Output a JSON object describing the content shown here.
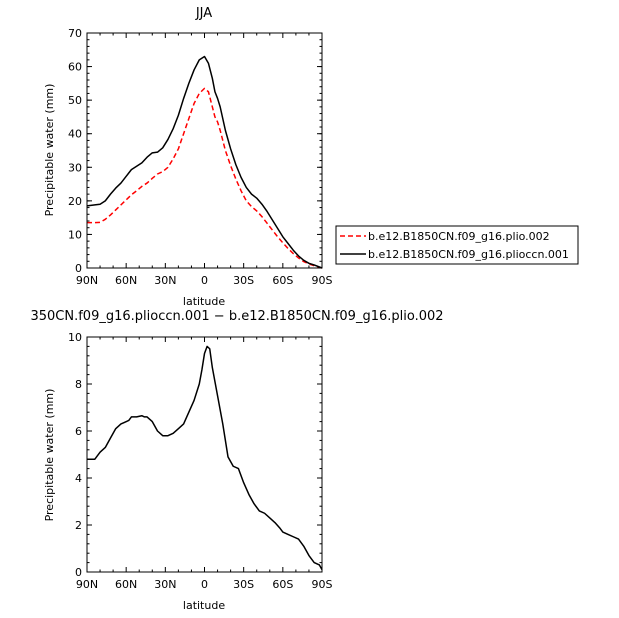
{
  "chart_data": [
    {
      "type": "line",
      "title": "JJA",
      "xlabel": "latitude",
      "ylabel": "Precipitable water (mm)",
      "xlim": [
        90,
        -90
      ],
      "ylim": [
        0,
        70
      ],
      "xtick_values": [
        90,
        60,
        30,
        0,
        -30,
        -60,
        -90
      ],
      "xtick_labels": [
        "90N",
        "60N",
        "30N",
        "0",
        "30S",
        "60S",
        "90S"
      ],
      "ytick_values": [
        0,
        10,
        20,
        30,
        40,
        50,
        60,
        70
      ],
      "ytick_labels": [
        "0",
        "10",
        "20",
        "30",
        "40",
        "50",
        "60",
        "70"
      ],
      "legend": "right",
      "series": [
        {
          "name": "b.e12.B1850CN.f09_g16.plio.002",
          "color": "#ff0000",
          "dashed": true,
          "x": [
            90,
            84,
            80,
            76,
            72,
            68,
            64,
            60,
            56,
            52,
            48,
            44,
            40,
            36,
            32,
            28,
            24,
            20,
            16,
            12,
            8,
            4,
            0,
            -3,
            -6,
            -8,
            -10,
            -12,
            -16,
            -20,
            -24,
            -28,
            -32,
            -36,
            -40,
            -44,
            -48,
            -52,
            -56,
            -60,
            -64,
            -68,
            -72,
            -76,
            -80,
            -84,
            -88,
            -90
          ],
          "y": [
            13.5,
            13.5,
            13.6,
            14.5,
            15.8,
            17.3,
            18.8,
            20.3,
            21.8,
            23.0,
            24.3,
            25.3,
            26.7,
            28.0,
            28.7,
            30.0,
            32.5,
            35.5,
            40.0,
            44.5,
            49.0,
            52.0,
            53.5,
            52.5,
            48.0,
            45.0,
            43.5,
            41.0,
            35.0,
            30.5,
            26.5,
            23.0,
            20.0,
            18.3,
            17.0,
            15.3,
            13.3,
            11.3,
            9.3,
            7.5,
            5.8,
            4.3,
            3.0,
            1.9,
            1.2,
            0.7,
            0.2,
            0.0
          ]
        },
        {
          "name": "b.e12.B1850CN.f09_g16.plioccn.001",
          "color": "#000000",
          "dashed": false,
          "x": [
            90,
            84,
            80,
            76,
            72,
            68,
            64,
            60,
            56,
            52,
            48,
            44,
            40,
            36,
            32,
            28,
            24,
            20,
            16,
            12,
            8,
            4,
            0,
            -3,
            -6,
            -8,
            -10,
            -12,
            -16,
            -20,
            -24,
            -28,
            -32,
            -36,
            -40,
            -44,
            -48,
            -52,
            -56,
            -60,
            -64,
            -68,
            -72,
            -76,
            -80,
            -84,
            -88,
            -90
          ],
          "y": [
            18.5,
            18.8,
            19.0,
            20.0,
            22.0,
            23.8,
            25.3,
            27.3,
            29.3,
            30.3,
            31.3,
            33.0,
            34.3,
            34.5,
            35.8,
            38.3,
            41.5,
            45.5,
            50.5,
            55.0,
            59.0,
            62.0,
            63.0,
            61.0,
            56.5,
            52.5,
            50.5,
            48.0,
            41.0,
            35.5,
            30.8,
            27.0,
            24.0,
            22.0,
            20.8,
            19.0,
            16.8,
            14.3,
            11.8,
            9.3,
            7.3,
            5.3,
            3.6,
            2.3,
            1.4,
            0.9,
            0.3,
            0.0
          ]
        }
      ]
    },
    {
      "type": "line",
      "title": "350CN.f09_g16.plioccn.001 − b.e12.B1850CN.f09_g16.plio.002",
      "xlabel": "latitude",
      "ylabel": "Precipitable water (mm)",
      "xlim": [
        90,
        -90
      ],
      "ylim": [
        0,
        10
      ],
      "xtick_values": [
        90,
        60,
        30,
        0,
        -30,
        -60,
        -90
      ],
      "xtick_labels": [
        "90N",
        "60N",
        "30N",
        "0",
        "30S",
        "60S",
        "90S"
      ],
      "ytick_values": [
        0,
        2,
        4,
        6,
        8,
        10
      ],
      "ytick_labels": [
        "0",
        "2",
        "4",
        "6",
        "8",
        "10"
      ],
      "series": [
        {
          "color": "#000000",
          "dashed": false,
          "x": [
            90,
            86,
            84,
            80,
            76,
            72,
            68,
            64,
            62,
            58,
            56,
            52,
            48,
            46,
            44,
            40,
            36,
            32,
            28,
            24,
            20,
            16,
            12,
            8,
            4,
            2,
            0,
            -2,
            -4,
            -6,
            -8,
            -10,
            -14,
            -18,
            -22,
            -26,
            -30,
            -34,
            -38,
            -42,
            -46,
            -50,
            -54,
            -58,
            -60,
            -64,
            -68,
            -72,
            -76,
            -80,
            -84,
            -88,
            -90
          ],
          "y": [
            4.8,
            4.8,
            4.8,
            5.1,
            5.3,
            5.7,
            6.1,
            6.3,
            6.35,
            6.45,
            6.6,
            6.6,
            6.65,
            6.6,
            6.6,
            6.4,
            6.0,
            5.8,
            5.8,
            5.9,
            6.1,
            6.3,
            6.8,
            7.3,
            8.0,
            8.6,
            9.3,
            9.6,
            9.5,
            8.7,
            8.1,
            7.5,
            6.3,
            4.9,
            4.5,
            4.4,
            3.8,
            3.3,
            2.9,
            2.6,
            2.5,
            2.3,
            2.1,
            1.85,
            1.7,
            1.6,
            1.5,
            1.4,
            1.1,
            0.7,
            0.4,
            0.3,
            0.1
          ]
        }
      ]
    }
  ]
}
